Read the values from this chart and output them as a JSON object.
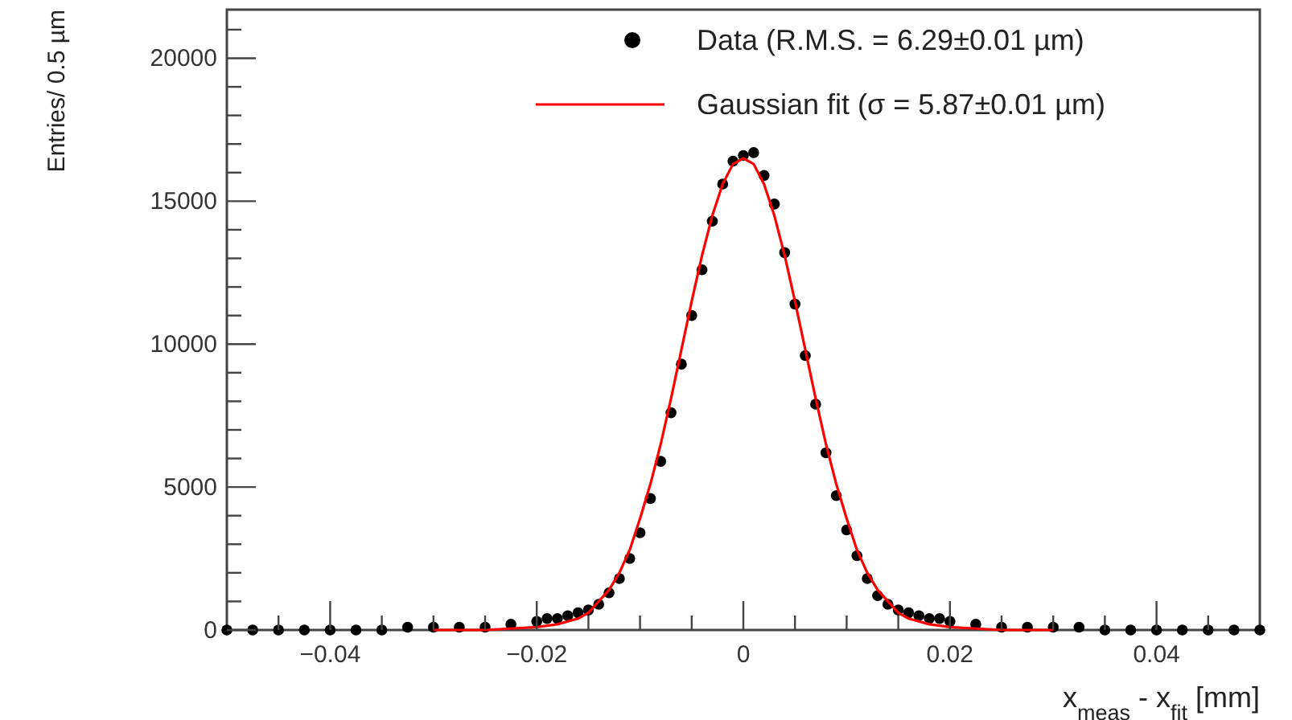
{
  "chart_data": {
    "type": "scatter",
    "xlabel": "x$_{meas}$ - x$_{fit}$ [mm]",
    "ylabel": "Entries/ 0.5 µm",
    "xlim": [
      -0.05,
      0.05
    ],
    "ylim": [
      0,
      21700
    ],
    "xticks": [
      {
        "value": -0.045,
        "label": null
      },
      -0.04,
      {
        "value": -0.035,
        "label": null
      },
      {
        "value": -0.03,
        "label": null
      },
      {
        "value": -0.025,
        "label": null
      },
      -0.02,
      {
        "value": -0.015,
        "label": null
      },
      {
        "value": -0.01,
        "label": null
      },
      {
        "value": -0.005,
        "label": null
      },
      0,
      {
        "value": 0.005,
        "label": null
      },
      {
        "value": 0.01,
        "label": null
      },
      {
        "value": 0.015,
        "label": null
      },
      0.02,
      {
        "value": 0.025,
        "label": null
      },
      {
        "value": 0.03,
        "label": null
      },
      {
        "value": 0.035,
        "label": null
      },
      0.04,
      {
        "value": 0.045,
        "label": null
      }
    ],
    "yticks": [
      0,
      {
        "value": 1000,
        "label": null
      },
      {
        "value": 2000,
        "label": null
      },
      {
        "value": 3000,
        "label": null
      },
      {
        "value": 4000,
        "label": null
      },
      5000,
      {
        "value": 6000,
        "label": null
      },
      {
        "value": 7000,
        "label": null
      },
      {
        "value": 8000,
        "label": null
      },
      {
        "value": 9000,
        "label": null
      },
      10000,
      {
        "value": 11000,
        "label": null
      },
      {
        "value": 12000,
        "label": null
      },
      {
        "value": 13000,
        "label": null
      },
      {
        "value": 14000,
        "label": null
      },
      15000,
      {
        "value": 16000,
        "label": null
      },
      {
        "value": 17000,
        "label": null
      },
      {
        "value": 18000,
        "label": null
      },
      {
        "value": 19000,
        "label": null
      },
      20000,
      {
        "value": 21000,
        "label": null
      }
    ],
    "grid": false,
    "legend": "top right",
    "series": [
      {
        "name": "Data (R.M.S. = 6.29±0.01 µm)",
        "marker": "circle",
        "color": "#000000",
        "x": [
          -0.05,
          -0.0475,
          -0.045,
          -0.0425,
          -0.04,
          -0.0375,
          -0.035,
          -0.0325,
          -0.03,
          -0.0275,
          -0.025,
          -0.0225,
          -0.02,
          -0.019,
          -0.018,
          -0.017,
          -0.016,
          -0.015,
          -0.014,
          -0.013,
          -0.012,
          -0.011,
          -0.01,
          -0.009,
          -0.008,
          -0.007,
          -0.006,
          -0.005,
          -0.004,
          -0.003,
          -0.002,
          -0.001,
          0,
          0.001,
          0.002,
          0.003,
          0.004,
          0.005,
          0.006,
          0.007,
          0.008,
          0.009,
          0.01,
          0.011,
          0.012,
          0.013,
          0.014,
          0.015,
          0.016,
          0.017,
          0.018,
          0.019,
          0.02,
          0.0225,
          0.025,
          0.0275,
          0.03,
          0.0325,
          0.035,
          0.0375,
          0.04,
          0.0425,
          0.045,
          0.0475,
          0.05
        ],
        "values": [
          0,
          0,
          0,
          0,
          0,
          0,
          0,
          100,
          100,
          100,
          100,
          200,
          300,
          400,
          400,
          500,
          600,
          700,
          900,
          1300,
          1800,
          2500,
          3400,
          4600,
          5900,
          7600,
          9300,
          11000,
          12600,
          14300,
          15600,
          16400,
          16600,
          16700,
          15900,
          14900,
          13200,
          11400,
          9600,
          7900,
          6200,
          4700,
          3500,
          2600,
          1800,
          1200,
          900,
          700,
          600,
          500,
          400,
          400,
          300,
          200,
          100,
          100,
          100,
          100,
          0,
          0,
          0,
          0,
          0,
          0,
          0
        ]
      },
      {
        "name": "Gaussian fit (σ = 5.87±0.01 µm)",
        "type": "line",
        "marker": "none",
        "line_style": "solid",
        "color": "#ff0000",
        "x": [
          -0.03,
          -0.025,
          -0.02,
          -0.018,
          -0.016,
          -0.015,
          -0.014,
          -0.013,
          -0.012,
          -0.011,
          -0.01,
          -0.009,
          -0.008,
          -0.007,
          -0.006,
          -0.005,
          -0.004,
          -0.003,
          -0.002,
          -0.001,
          0,
          0.001,
          0.002,
          0.003,
          0.004,
          0.005,
          0.006,
          0.007,
          0.008,
          0.009,
          0.01,
          0.011,
          0.012,
          0.013,
          0.014,
          0.015,
          0.016,
          0.018,
          0.02,
          0.025,
          0.03
        ],
        "values": [
          0,
          0,
          100,
          200,
          400,
          600,
          1000,
          1400,
          2000,
          2800,
          3900,
          5100,
          6500,
          8100,
          9800,
          11500,
          13100,
          14500,
          15600,
          16300,
          16500,
          16300,
          15600,
          14500,
          13100,
          11500,
          9800,
          8100,
          6500,
          5100,
          3900,
          2800,
          2000,
          1400,
          1000,
          600,
          400,
          200,
          100,
          0,
          0
        ]
      }
    ]
  }
}
